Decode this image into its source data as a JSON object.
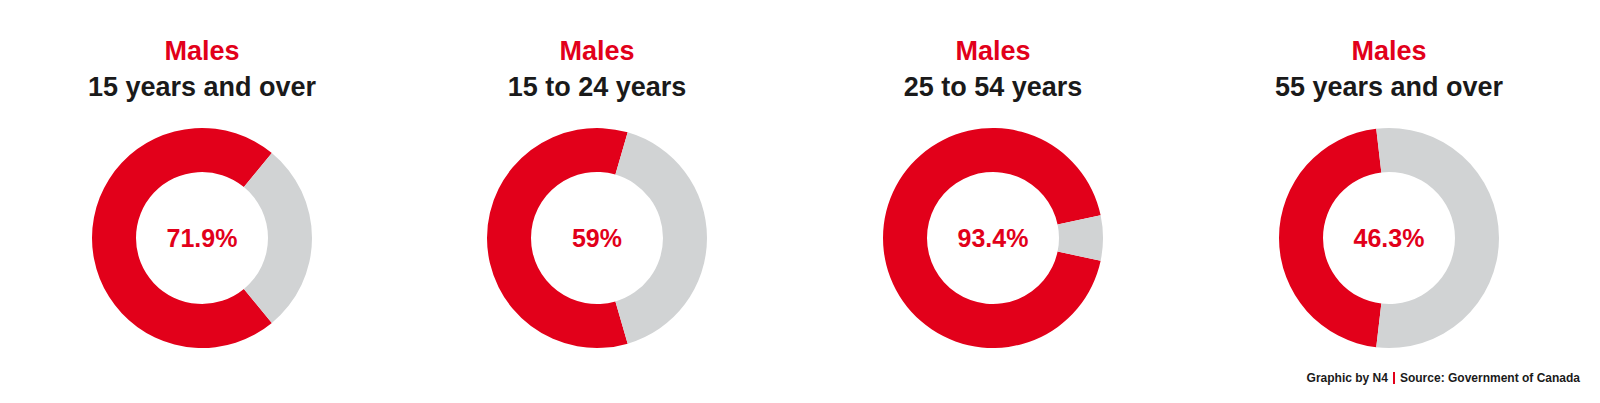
{
  "chart_data": [
    {
      "type": "pie",
      "title": "Males",
      "subtitle": "15 years and over",
      "categories": [
        null,
        null
      ],
      "values": [
        71.9,
        28.1
      ],
      "value_labels": [
        "71.9%",
        null
      ],
      "colors": [
        "#e2001a",
        "#d1d3d4"
      ],
      "data_labels": true
    },
    {
      "type": "pie",
      "title": "Males",
      "subtitle": "15 to 24 years",
      "categories": [
        null,
        null
      ],
      "values": [
        59,
        41
      ],
      "value_labels": [
        "59%",
        null
      ],
      "colors": [
        "#e2001a",
        "#d1d3d4"
      ],
      "data_labels": true
    },
    {
      "type": "pie",
      "title": "Males",
      "subtitle": "25 to 54 years",
      "categories": [
        null,
        null
      ],
      "values": [
        93.4,
        6.6
      ],
      "value_labels": [
        "93.4%",
        null
      ],
      "colors": [
        "#e2001a",
        "#d1d3d4"
      ],
      "data_labels": true
    },
    {
      "type": "pie",
      "title": "Males",
      "subtitle": "55 years and over",
      "categories": [
        null,
        null
      ],
      "values": [
        46.3,
        53.7
      ],
      "value_labels": [
        "46.3%",
        null
      ],
      "colors": [
        "#e2001a",
        "#d1d3d4"
      ],
      "data_labels": true
    }
  ],
  "credit": [
    "Graphic by N4",
    "Source: Government of Canada"
  ]
}
